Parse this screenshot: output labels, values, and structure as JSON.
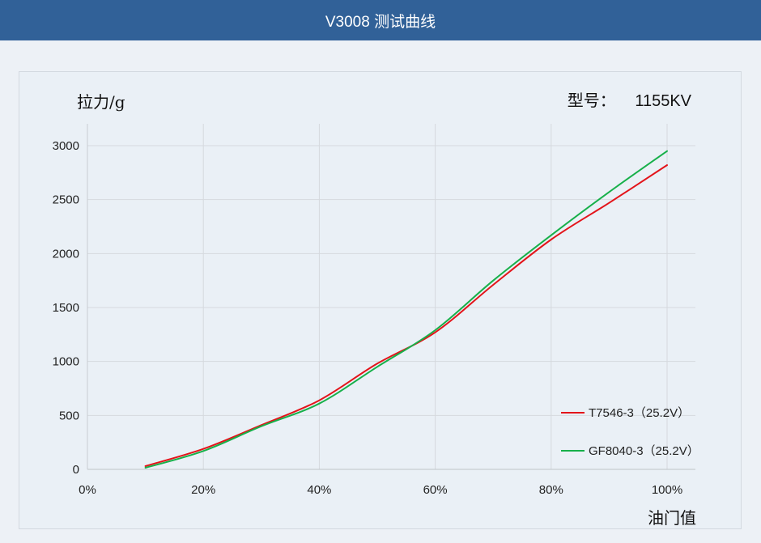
{
  "header": {
    "title": "V3008 测试曲线"
  },
  "labels": {
    "y_axis": "拉力/g",
    "x_axis": "油门值",
    "model_label": "型号：",
    "model_value": "1155KV"
  },
  "colors": {
    "header_bg": "#316198",
    "series_1": "#e3141a",
    "series_2": "#17b04a"
  },
  "chart_data": {
    "type": "line",
    "title": "V3008 测试曲线",
    "xlabel": "油门值",
    "ylabel": "拉力/g",
    "xlim": [
      0,
      100
    ],
    "ylim": [
      0,
      3200
    ],
    "x_ticks": [
      0,
      20,
      40,
      60,
      80,
      100
    ],
    "x_tick_labels": [
      "0%",
      "20%",
      "40%",
      "60%",
      "80%",
      "100%"
    ],
    "y_ticks": [
      0,
      500,
      1000,
      1500,
      2000,
      2500,
      3000
    ],
    "y_tick_labels": [
      "0",
      "500",
      "1000",
      "1500",
      "2000",
      "2500",
      "3000"
    ],
    "grid": true,
    "legend_position": "bottom-right",
    "series": [
      {
        "name": "T7546-3（25.2V）",
        "color": "#e3141a",
        "x": [
          10,
          20,
          30,
          40,
          50,
          60,
          70,
          80,
          90,
          100
        ],
        "y": [
          30,
          190,
          410,
          640,
          980,
          1270,
          1710,
          2130,
          2470,
          2820
        ]
      },
      {
        "name": "GF8040-3（25.2V）",
        "color": "#17b04a",
        "x": [
          10,
          20,
          30,
          40,
          50,
          60,
          70,
          80,
          90,
          100
        ],
        "y": [
          15,
          170,
          400,
          610,
          950,
          1290,
          1750,
          2170,
          2570,
          2950
        ]
      }
    ]
  }
}
